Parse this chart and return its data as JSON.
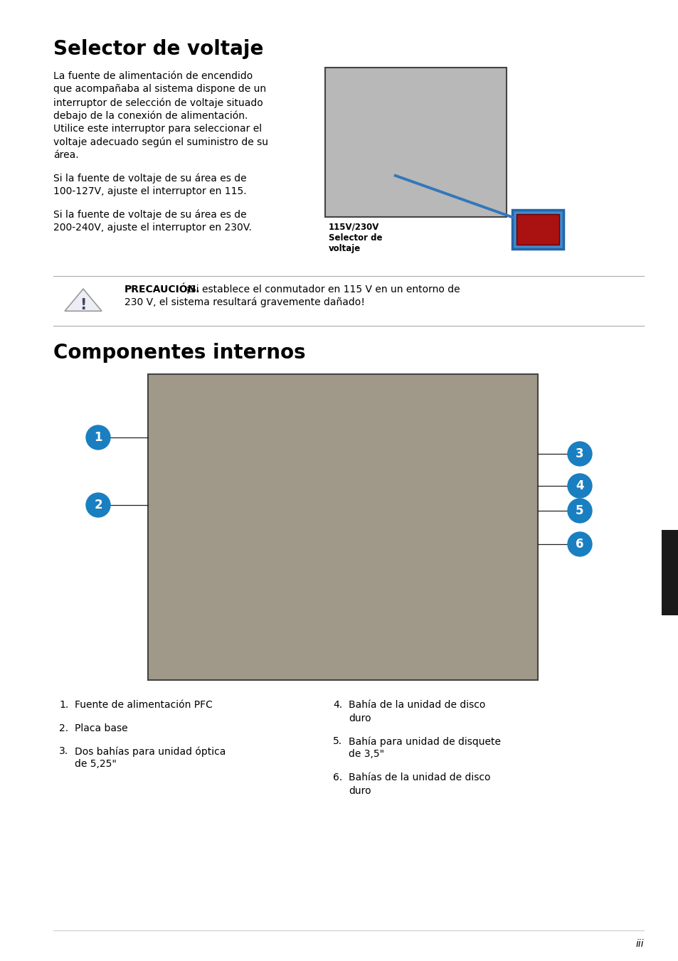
{
  "bg_color": "#ffffff",
  "title1": "Selector de voltaje",
  "title2": "Componentes internos",
  "body_text1_lines": [
    "La fuente de alimentación de encendido",
    "que acompañaba al sistema dispone de un",
    "interruptor de selección de voltaje situado",
    "debajo de la conexión de alimentación.",
    "Utilice este interruptor para seleccionar el",
    "voltaje adecuado según el suministro de su",
    "área."
  ],
  "body_text2_lines": [
    "Si la fuente de voltaje de su área es de",
    "100-127V, ajuste el interruptor en 115."
  ],
  "body_text3_lines": [
    "Si la fuente de voltaje de su área es de",
    "200-240V, ajuste el interruptor en 230V."
  ],
  "caption1_line1": "115V/230V",
  "caption1_line2": "Selector de",
  "caption1_line3": "voltaje",
  "caution_label": "PRECAUCIÓN.",
  "caution_rest": " ¡Si establece el conmutador en 115 V en un entorno de",
  "caution_line2": "230 V, el sistema resultará gravemente dañado!",
  "list_left": [
    [
      "1.",
      "Fuente de alimentación PFC"
    ],
    [
      "2.",
      "Placa base"
    ],
    [
      "3.",
      "Dos bahías para unidad óptica",
      "de 5,25\""
    ]
  ],
  "list_right": [
    [
      "4.",
      "Bahía de la unidad de disco",
      "duro"
    ],
    [
      "5.",
      "Bahía para unidad de disquete",
      "de 3,5\""
    ],
    [
      "6.",
      "Bahías de la unidad de disco",
      "duro"
    ]
  ],
  "page_num": "iii",
  "text_color": "#000000",
  "title_color": "#000000",
  "blue_circle_color": "#1a7fc1",
  "circle_text_color": "#ffffff",
  "img1_border": "#444444",
  "img1_fill": "#b8b8b8",
  "img2_border": "#444444",
  "img2_fill": "#a09888",
  "caution_line_color": "#aaaaaa",
  "sep_line_color": "#cccccc",
  "black_tab_color": "#1a1a1a",
  "lm": 75,
  "rm": 905
}
